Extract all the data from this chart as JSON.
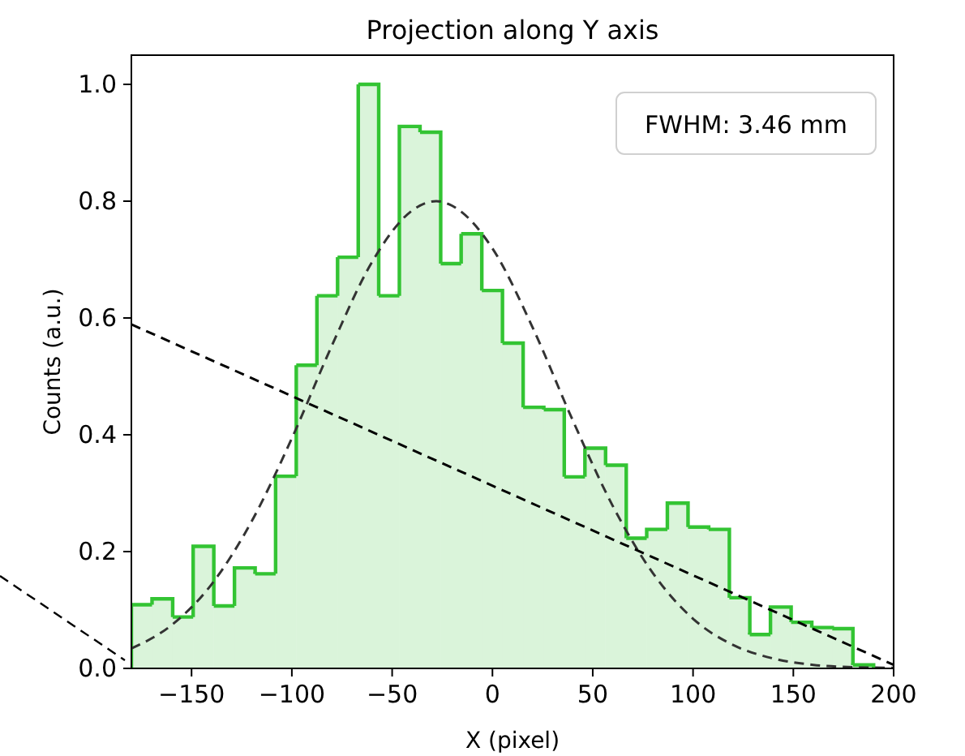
{
  "chart_data": {
    "type": "histogram",
    "title": "Projection along Y axis",
    "xlabel": "X (pixel)",
    "ylabel": "Counts (a.u.)",
    "xlim": [
      -180,
      200
    ],
    "xticks": [
      {
        "value": -150,
        "label": "−150"
      },
      {
        "value": -100,
        "label": "−100"
      },
      {
        "value": -50,
        "label": "−50"
      },
      0,
      50,
      100,
      150,
      200
    ],
    "ylim": [
      0,
      1.05
    ],
    "yticks": [
      {
        "value": 0,
        "label": "0.0"
      },
      0.2,
      0.4,
      0.6,
      0.8,
      {
        "value": 1,
        "label": "1.0"
      }
    ],
    "grid": false,
    "legend": false,
    "annotations": [
      "FWHM: 3.46 mm"
    ],
    "color": "#33c433",
    "bins": [
      -180,
      -169.7,
      -159.4,
      -149.2,
      -138.9,
      -128.6,
      -118.3,
      -108.1,
      -97.8,
      -87.5,
      -77.2,
      -66.9,
      -56.7,
      -46.4,
      -36.1,
      -25.8,
      -15.6,
      -5.3,
      5,
      15.3,
      25.6,
      35.8,
      46.1,
      56.4,
      66.7,
      76.9,
      87.2,
      97.5,
      107.8,
      118.1,
      128.3,
      138.6,
      148.9,
      159.2,
      169.4,
      179.7,
      190
    ],
    "values": [
      0.109,
      0.119,
      0.088,
      0.209,
      0.107,
      0.172,
      0.162,
      0.329,
      0.519,
      0.638,
      0.704,
      1.0,
      0.638,
      0.928,
      0.918,
      0.693,
      0.744,
      0.647,
      0.557,
      0.447,
      0.443,
      0.328,
      0.377,
      0.348,
      0.223,
      0.238,
      0.283,
      0.242,
      0.238,
      0.121,
      0.058,
      0.105,
      0.079,
      0.07,
      0.068,
      0.006
    ],
    "series": [
      {
        "type": "line",
        "color": "#333333",
        "line_style": "dashed",
        "x": [
          -180,
          -160,
          -140,
          -120,
          -100,
          -80,
          -60,
          -40,
          -28,
          -20,
          0,
          20,
          40,
          60,
          80,
          100,
          120,
          140,
          160,
          180,
          200
        ],
        "values": [
          0.034,
          0.074,
          0.144,
          0.252,
          0.394,
          0.553,
          0.696,
          0.784,
          0.8,
          0.792,
          0.719,
          0.584,
          0.425,
          0.278,
          0.163,
          0.085,
          0.04,
          0.017,
          0.006,
          0.002,
          0.001
        ]
      },
      {
        "type": "line",
        "color": "#000000",
        "line_style": "dashed",
        "x": [
          -180,
          200
        ],
        "values": [
          0.589,
          0.006
        ]
      }
    ]
  }
}
